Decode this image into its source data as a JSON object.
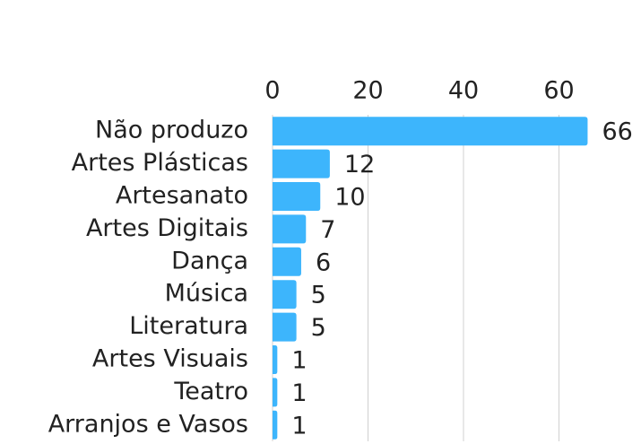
{
  "chart_data": {
    "type": "bar",
    "orientation": "horizontal",
    "categories": [
      "Não produzo",
      "Artes Plásticas",
      "Artesanato",
      "Artes Digitais",
      "Dança",
      "Música",
      "Literatura",
      "Artes Visuais",
      "Teatro",
      "Arranjos e Vasos"
    ],
    "values": [
      66,
      12,
      10,
      7,
      6,
      5,
      5,
      1,
      1,
      1
    ],
    "color": "#3db5fc",
    "xlim": [
      0,
      70
    ],
    "xticks": [
      0,
      20,
      40,
      60
    ],
    "grid": true
  }
}
